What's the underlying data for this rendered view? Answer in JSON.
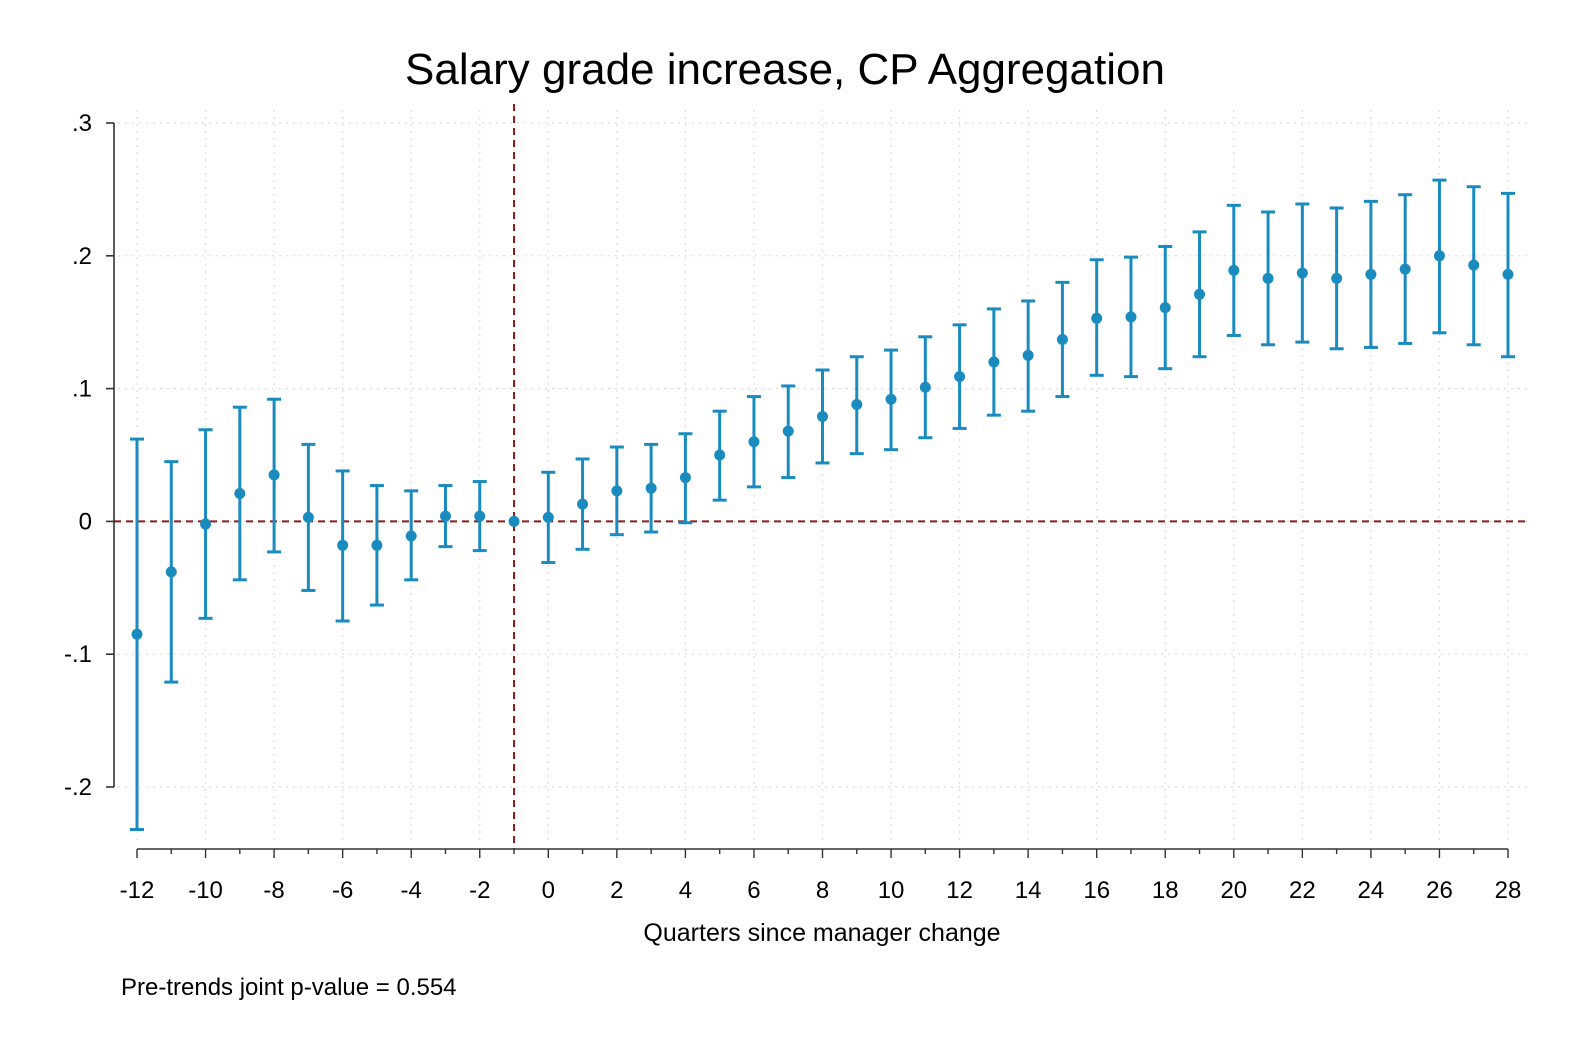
{
  "chart_data": {
    "type": "scatter",
    "title": "Salary grade increase, CP Aggregation",
    "xlabel": "Quarters since manager change",
    "ylabel": "",
    "note": "Pre-trends joint p-value = 0.554",
    "xlim": [
      -12,
      28
    ],
    "ylim": [
      -0.25,
      0.3
    ],
    "x_ticks": [
      -12,
      -10,
      -8,
      -6,
      -4,
      -2,
      0,
      2,
      4,
      6,
      8,
      10,
      12,
      14,
      16,
      18,
      20,
      22,
      24,
      26,
      28
    ],
    "x_tick_labels": [
      "-12",
      "-10",
      "-8",
      "-6",
      "-4",
      "-2",
      "0",
      "2",
      "4",
      "6",
      "8",
      "10",
      "12",
      "14",
      "16",
      "18",
      "20",
      "22",
      "24",
      "26",
      "28"
    ],
    "y_ticks": [
      -0.2,
      -0.1,
      0,
      0.1,
      0.2,
      0.3
    ],
    "y_tick_labels": [
      "-.2",
      "-.1",
      "0",
      ".1",
      ".2",
      ".3"
    ],
    "grid": true,
    "reference_lines": {
      "vertical_x": -1,
      "horizontal_y": 0
    },
    "colors": {
      "series": "#1a8bbf",
      "reference": "#8b1a1a",
      "grid": "#dcdcdc",
      "axis": "#333333"
    },
    "series": [
      {
        "x": [
          -12,
          -11,
          -10,
          -9,
          -8,
          -7,
          -6,
          -5,
          -4,
          -3,
          -2,
          -1,
          0,
          1,
          2,
          3,
          4,
          5,
          6,
          7,
          8,
          9,
          10,
          11,
          12,
          13,
          14,
          15,
          16,
          17,
          18,
          19,
          20,
          21,
          22,
          23,
          24,
          25,
          26,
          27,
          28
        ],
        "y": [
          -0.085,
          -0.038,
          -0.002,
          0.021,
          0.035,
          0.003,
          -0.018,
          -0.018,
          -0.011,
          0.004,
          0.004,
          0.0,
          0.003,
          0.013,
          0.023,
          0.025,
          0.033,
          0.05,
          0.06,
          0.068,
          0.079,
          0.088,
          0.092,
          0.101,
          0.109,
          0.12,
          0.125,
          0.137,
          0.153,
          0.154,
          0.161,
          0.171,
          0.189,
          0.183,
          0.187,
          0.183,
          0.186,
          0.19,
          0.2,
          0.193,
          0.186
        ],
        "ci_low": [
          -0.232,
          -0.121,
          -0.073,
          -0.044,
          -0.023,
          -0.052,
          -0.075,
          -0.063,
          -0.044,
          -0.019,
          -0.022,
          0.0,
          -0.031,
          -0.021,
          -0.01,
          -0.008,
          -0.001,
          0.016,
          0.026,
          0.033,
          0.044,
          0.051,
          0.054,
          0.063,
          0.07,
          0.08,
          0.083,
          0.094,
          0.11,
          0.109,
          0.115,
          0.124,
          0.14,
          0.133,
          0.135,
          0.13,
          0.131,
          0.134,
          0.142,
          0.133,
          0.124
        ],
        "ci_high": [
          0.062,
          0.045,
          0.069,
          0.086,
          0.092,
          0.058,
          0.038,
          0.027,
          0.023,
          0.027,
          0.03,
          0.0,
          0.037,
          0.047,
          0.056,
          0.058,
          0.066,
          0.083,
          0.094,
          0.102,
          0.114,
          0.124,
          0.129,
          0.139,
          0.148,
          0.16,
          0.166,
          0.18,
          0.197,
          0.199,
          0.207,
          0.218,
          0.238,
          0.233,
          0.239,
          0.236,
          0.241,
          0.246,
          0.257,
          0.252,
          0.247
        ]
      }
    ]
  }
}
